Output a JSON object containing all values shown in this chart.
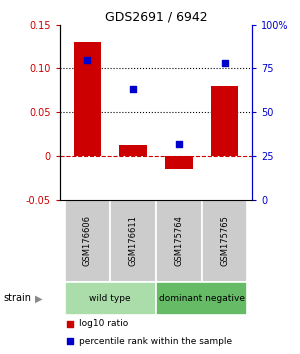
{
  "title": "GDS2691 / 6942",
  "samples": [
    "GSM176606",
    "GSM176611",
    "GSM175764",
    "GSM175765"
  ],
  "log10_ratio": [
    0.13,
    0.012,
    -0.015,
    0.08
  ],
  "percentile_rank": [
    80,
    63,
    32,
    78
  ],
  "bar_color": "#cc0000",
  "dot_color": "#0000cc",
  "ylim_left": [
    -0.05,
    0.15
  ],
  "ylim_right": [
    0,
    100
  ],
  "yticks_left": [
    -0.05,
    0.0,
    0.05,
    0.1,
    0.15
  ],
  "ytick_labels_left": [
    "-0.05",
    "0",
    "0.05",
    "0.10",
    "0.15"
  ],
  "yticks_right": [
    0,
    25,
    50,
    75,
    100
  ],
  "ytick_labels_right": [
    "0",
    "25",
    "50",
    "75",
    "100%"
  ],
  "hlines_dotted": [
    0.05,
    0.1
  ],
  "hline_dashed": 0.0,
  "groups": [
    {
      "label": "wild type",
      "indices": [
        0,
        1
      ],
      "color": "#aaddaa"
    },
    {
      "label": "dominant negative",
      "indices": [
        2,
        3
      ],
      "color": "#66bb66"
    }
  ],
  "legend_bar_label": "log10 ratio",
  "legend_dot_label": "percentile rank within the sample",
  "strain_label": "strain",
  "bg_color_samples": "#cccccc",
  "bar_width": 0.6
}
